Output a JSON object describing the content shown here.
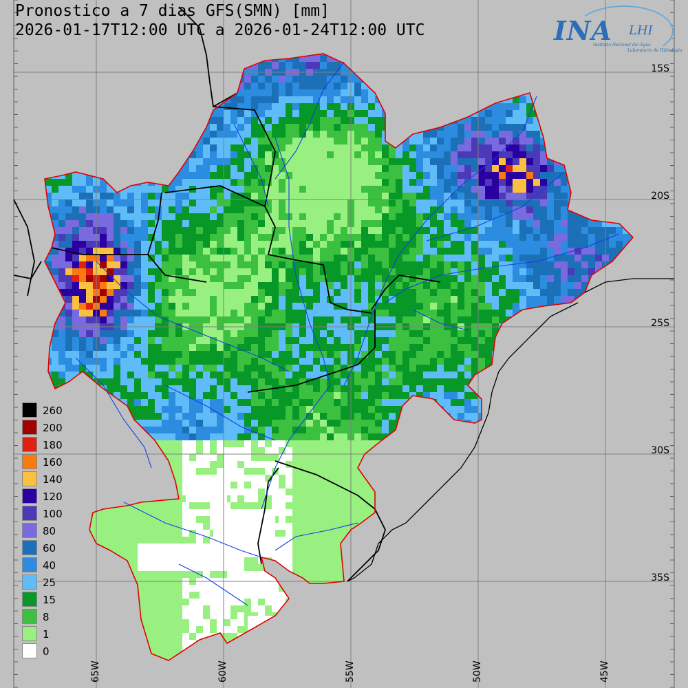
{
  "title": {
    "line1": "Pronostico a 7 dias GFS(SMN) [mm]",
    "line2": "2026-01-17T12:00 UTC a 2026-01-24T12:00 UTC"
  },
  "logo": {
    "name": "INA",
    "lab": "LHI",
    "subtitle1": "Instituto Nacional del Agua",
    "subtitle2": "Laboratorio de Hidrología"
  },
  "latitude_labels": [
    "15S",
    "20S",
    "25S",
    "30S",
    "35S"
  ],
  "longitude_labels": [
    "65W",
    "60W",
    "55W",
    "50W",
    "45W"
  ],
  "legend": {
    "items": [
      {
        "value": "260",
        "color": "#000000"
      },
      {
        "value": "200",
        "color": "#a00000"
      },
      {
        "value": "180",
        "color": "#e02010"
      },
      {
        "value": "160",
        "color": "#f87a10"
      },
      {
        "value": "140",
        "color": "#fcc040"
      },
      {
        "value": "120",
        "color": "#2a00a0"
      },
      {
        "value": "100",
        "color": "#4a3ab8"
      },
      {
        "value": "80",
        "color": "#7a6ae0"
      },
      {
        "value": "60",
        "color": "#1c70b8"
      },
      {
        "value": "40",
        "color": "#2c8ce0"
      },
      {
        "value": "25",
        "color": "#60bcf8"
      },
      {
        "value": "15",
        "color": "#089828"
      },
      {
        "value": "8",
        "color": "#3cc040"
      },
      {
        "value": "1",
        "color": "#98f080"
      },
      {
        "value": "0",
        "color": "#ffffff"
      }
    ]
  },
  "map": {
    "background_color": "#c0c0c0",
    "basin_border_color": "#e00000",
    "river_color": "#1040e0",
    "country_border_color": "#000000"
  }
}
